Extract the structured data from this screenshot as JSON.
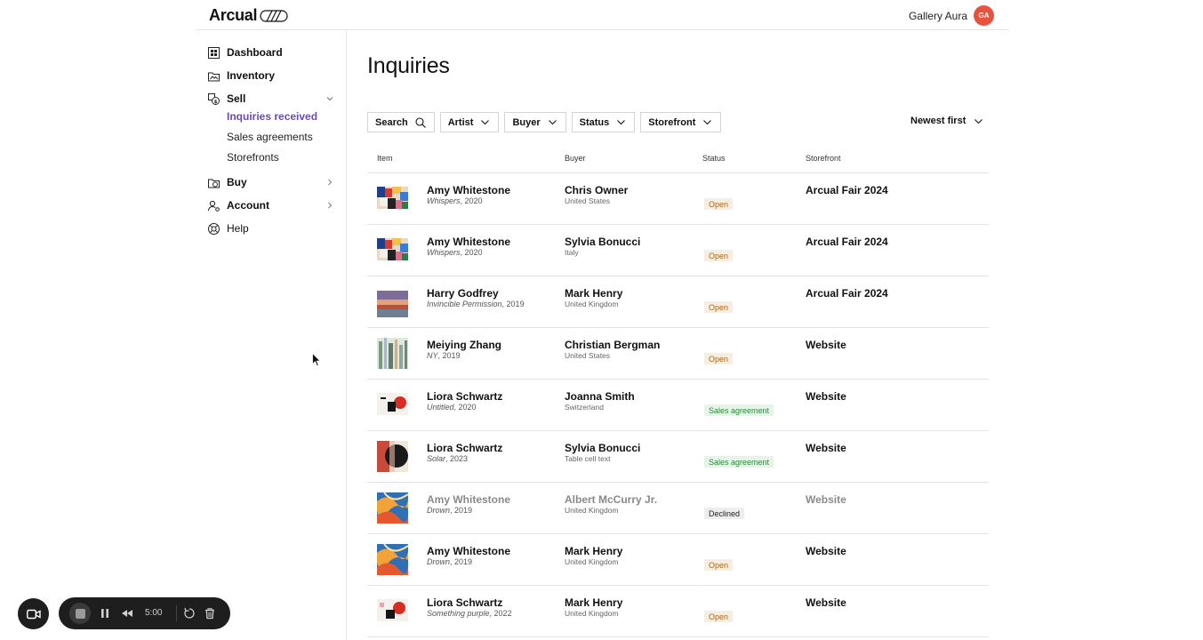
{
  "header": {
    "logo_text": "Arcual",
    "gallery_name": "Gallery Aura",
    "avatar_initials": "GA",
    "avatar_color": "#e8533f"
  },
  "sidebar": {
    "items": [
      {
        "label": "Dashboard",
        "icon": "dashboard-icon"
      },
      {
        "label": "Inventory",
        "icon": "inventory-icon"
      },
      {
        "label": "Sell",
        "icon": "sell-icon",
        "expanded": true
      },
      {
        "label": "Buy",
        "icon": "buy-icon"
      },
      {
        "label": "Account",
        "icon": "account-icon"
      },
      {
        "label": "Help",
        "icon": "help-icon"
      }
    ],
    "sell_subitems": [
      {
        "label": "Inquiries received",
        "active": true
      },
      {
        "label": "Sales agreements"
      },
      {
        "label": "Storefronts"
      }
    ],
    "accent_color": "#6c4bb5"
  },
  "main": {
    "title": "Inquiries",
    "filters": [
      "Search",
      "Artist",
      "Buyer",
      "Status",
      "Storefront"
    ],
    "sort_label": "Newest first",
    "columns": [
      "Item",
      "Buyer",
      "Status",
      "Storefront"
    ],
    "rows": [
      {
        "artist": "Amy Whitestone",
        "work_title": "Whispers",
        "work_year": ", 2020",
        "buyer": "Chris Owner",
        "country": "United States",
        "status": "Open",
        "storefront": "Arcual Fair 2024"
      },
      {
        "artist": "Amy Whitestone",
        "work_title": "Whispers",
        "work_year": ", 2020",
        "buyer": "Sylvia Bonucci",
        "country": "Italy",
        "status": "Open",
        "storefront": "Arcual Fair 2024"
      },
      {
        "artist": "Harry Godfrey",
        "work_title": "Invincible Permission",
        "work_year": ", 2019",
        "buyer": "Mark Henry",
        "country": "United Kingdom",
        "status": "Open",
        "storefront": "Arcual Fair 2024"
      },
      {
        "artist": "Meiying Zhang",
        "work_title": "NY",
        "work_year": ", 2019",
        "buyer": "Christian Bergman",
        "country": "United States",
        "status": "Open",
        "storefront": "Website"
      },
      {
        "artist": "Liora Schwartz",
        "work_title": "Untitled",
        "work_year": ", 2020",
        "buyer": "Joanna Smith",
        "country": "Switzerland",
        "status": "Sales agreement",
        "storefront": "Website"
      },
      {
        "artist": "Liora Schwartz",
        "work_title": "Solar",
        "work_year": ", 2023",
        "buyer": "Sylvia Bonucci",
        "country": "Table cell text",
        "status": "Sales agreement",
        "storefront": "Website"
      },
      {
        "artist": "Amy Whitestone",
        "work_title": "Drown",
        "work_year": ", 2019",
        "buyer": "Albert McCurry Jr.",
        "country": "United Kingdom",
        "status": "Declined",
        "storefront": "Website"
      },
      {
        "artist": "Amy Whitestone",
        "work_title": "Drown",
        "work_year": ", 2019",
        "buyer": "Mark Henry",
        "country": "United Kingdom",
        "status": "Open",
        "storefront": "Website"
      },
      {
        "artist": "Liora Schwartz",
        "work_title": "Something purple",
        "work_year": ", 2022",
        "buyer": "Mark Henry",
        "country": "United Kingdom",
        "status": "Open",
        "storefront": "Website"
      }
    ]
  },
  "recorder": {
    "time": "5:00"
  }
}
